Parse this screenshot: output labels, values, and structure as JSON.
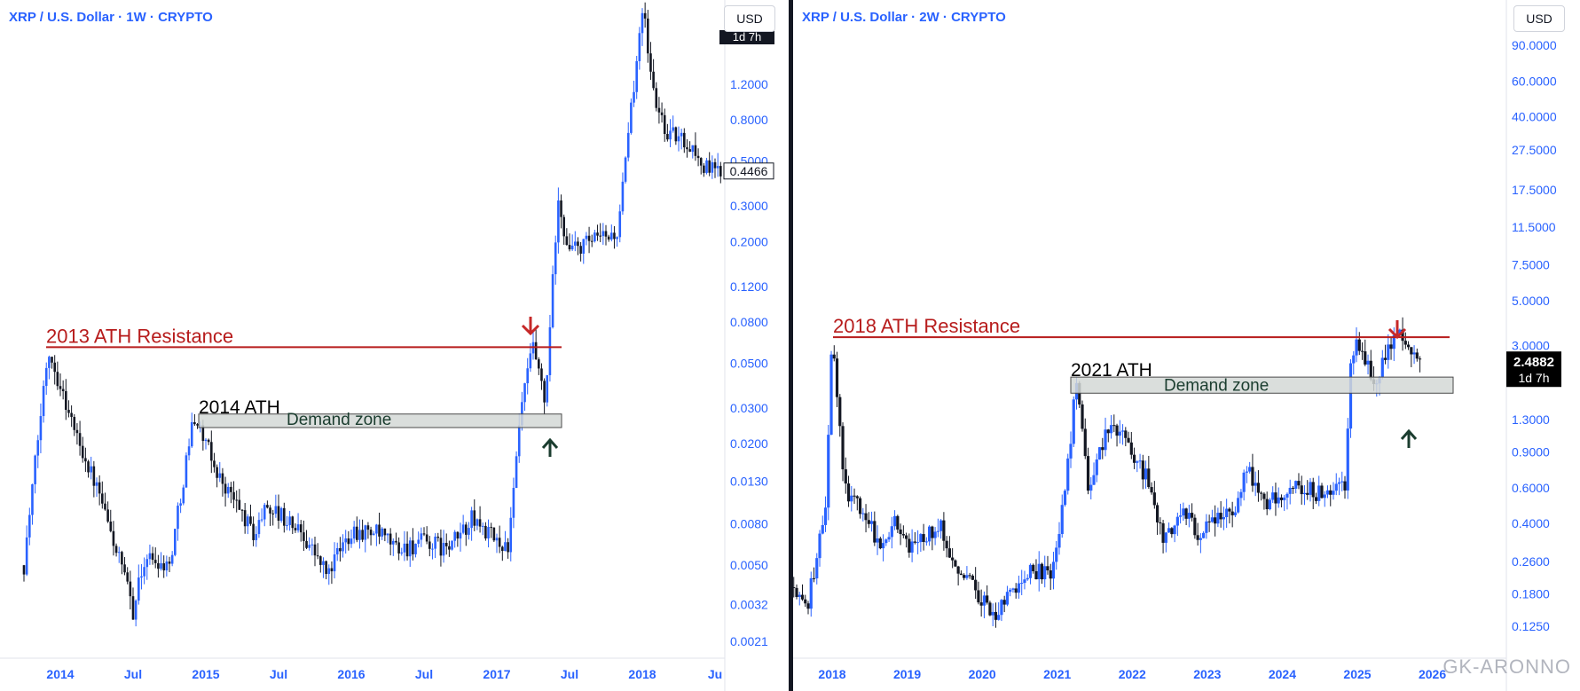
{
  "watermark": "GK-ARONNO",
  "colors": {
    "accent": "#2962ff",
    "resistance": "#b71c1c",
    "down_arrow": "#c62828",
    "up_arrow": "#1b3d2f",
    "candle_up": "#2962ff",
    "candle_down": "#131722",
    "zone_fill": "#d3d8d6",
    "zone_border": "#4a4a4a"
  },
  "panels": [
    {
      "symbol": "XRP / U.S. Dollar · 1W · CRYPTO",
      "currency_button": "USD",
      "price_badge": "0.4466",
      "badge_overlap_text": "1d 7h"
    },
    {
      "symbol": "XRP / U.S. Dollar · 2W · CRYPTO",
      "currency_button": "USD",
      "price_badge": "2.4882",
      "badge_countdown": "1d 7h"
    }
  ],
  "chart_data": [
    {
      "type": "candlestick",
      "title": "XRP / U.S. Dollar · 1W · CRYPTO",
      "y_scale": "log",
      "y_tick_labels": [
        "1.2000",
        "0.8000",
        "0.5000",
        "0.3000",
        "0.2000",
        "0.1200",
        "0.0800",
        "0.0500",
        "0.0300",
        "0.0200",
        "0.0130",
        "0.0080",
        "0.0050",
        "0.0032",
        "0.0021"
      ],
      "x_tick_labels": [
        "2014",
        "Jul",
        "2015",
        "Jul",
        "2016",
        "Jul",
        "2017",
        "Jul",
        "2018",
        "Ju"
      ],
      "ylim": [
        0.0018,
        3.0
      ],
      "last_price": 0.4466,
      "path": [
        [
          "2013-10",
          0.005
        ],
        [
          "2013-12",
          0.06
        ],
        [
          "2014-02",
          0.025
        ],
        [
          "2014-04",
          0.012
        ],
        [
          "2014-06",
          0.005
        ],
        [
          "2014-07",
          0.003
        ],
        [
          "2014-08",
          0.0055
        ],
        [
          "2014-10",
          0.005
        ],
        [
          "2014-12",
          0.028
        ],
        [
          "2015-02",
          0.014
        ],
        [
          "2015-04",
          0.009
        ],
        [
          "2015-05",
          0.007
        ],
        [
          "2015-06",
          0.01
        ],
        [
          "2015-08",
          0.008
        ],
        [
          "2015-09",
          0.0072
        ],
        [
          "2015-11",
          0.0045
        ],
        [
          "2016-01",
          0.0075
        ],
        [
          "2016-03",
          0.0072
        ],
        [
          "2016-05",
          0.006
        ],
        [
          "2016-07",
          0.0065
        ],
        [
          "2016-09",
          0.006
        ],
        [
          "2016-11",
          0.0085
        ],
        [
          "2017-01",
          0.0065
        ],
        [
          "2017-02",
          0.0062
        ],
        [
          "2017-03",
          0.03
        ],
        [
          "2017-04",
          0.06
        ],
        [
          "2017-05",
          0.03
        ],
        [
          "2017-06",
          0.3
        ],
        [
          "2017-07",
          0.18
        ],
        [
          "2017-09",
          0.2
        ],
        [
          "2017-11",
          0.22
        ],
        [
          "2017-12",
          0.8
        ],
        [
          "2018-01",
          3.0
        ],
        [
          "2018-02",
          1.0
        ],
        [
          "2018-03",
          0.7
        ],
        [
          "2018-05",
          0.6
        ],
        [
          "2018-06",
          0.47
        ],
        [
          "2018-07",
          0.4466
        ]
      ],
      "annotations": {
        "resistance_label": "2013 ATH Resistance",
        "resistance_level": 0.06,
        "ath_label": "2014 ATH",
        "zone_label": "Demand zone",
        "zone_range": [
          0.024,
          0.028
        ]
      }
    },
    {
      "type": "candlestick",
      "title": "XRP / U.S. Dollar · 2W · CRYPTO",
      "y_scale": "log",
      "y_tick_labels": [
        "90.0000",
        "60.0000",
        "40.0000",
        "27.5000",
        "17.5000",
        "11.5000",
        "7.5000",
        "5.0000",
        "3.0000",
        "1.3000",
        "0.9000",
        "0.6000",
        "0.4000",
        "0.2600",
        "0.1800",
        "0.1250"
      ],
      "x_tick_labels": [
        "2018",
        "2019",
        "2020",
        "2021",
        "2022",
        "2023",
        "2024",
        "2025",
        "2026"
      ],
      "ylim": [
        0.11,
        170
      ],
      "last_price": 2.4882,
      "path": [
        [
          "2017-06",
          0.2
        ],
        [
          "2017-09",
          0.15
        ],
        [
          "2017-12",
          0.5
        ],
        [
          "2018-01",
          3.3
        ],
        [
          "2018-03",
          0.6
        ],
        [
          "2018-06",
          0.45
        ],
        [
          "2018-09",
          0.3
        ],
        [
          "2018-11",
          0.45
        ],
        [
          "2019-01",
          0.3
        ],
        [
          "2019-06",
          0.4
        ],
        [
          "2019-09",
          0.25
        ],
        [
          "2019-12",
          0.19
        ],
        [
          "2020-03",
          0.14
        ],
        [
          "2020-06",
          0.19
        ],
        [
          "2020-09",
          0.24
        ],
        [
          "2020-12",
          0.22
        ],
        [
          "2021-02",
          0.5
        ],
        [
          "2021-04",
          1.9
        ],
        [
          "2021-06",
          0.6
        ],
        [
          "2021-09",
          1.2
        ],
        [
          "2021-11",
          1.1
        ],
        [
          "2022-03",
          0.7
        ],
        [
          "2022-06",
          0.32
        ],
        [
          "2022-09",
          0.45
        ],
        [
          "2022-12",
          0.35
        ],
        [
          "2023-06",
          0.5
        ],
        [
          "2023-07",
          0.8
        ],
        [
          "2023-10",
          0.5
        ],
        [
          "2024-03",
          0.6
        ],
        [
          "2024-08",
          0.55
        ],
        [
          "2024-11",
          0.6
        ],
        [
          "2024-12",
          2.4
        ],
        [
          "2025-01",
          3.0
        ],
        [
          "2025-04",
          2.0
        ],
        [
          "2025-07",
          3.5
        ],
        [
          "2025-10",
          2.7
        ],
        [
          "2025-11",
          2.4882
        ]
      ],
      "annotations": {
        "resistance_label": "2018 ATH Resistance",
        "resistance_level": 3.3,
        "ath_label": "2021 ATH",
        "zone_label": "Demand zone",
        "zone_range": [
          1.75,
          2.1
        ]
      }
    }
  ]
}
